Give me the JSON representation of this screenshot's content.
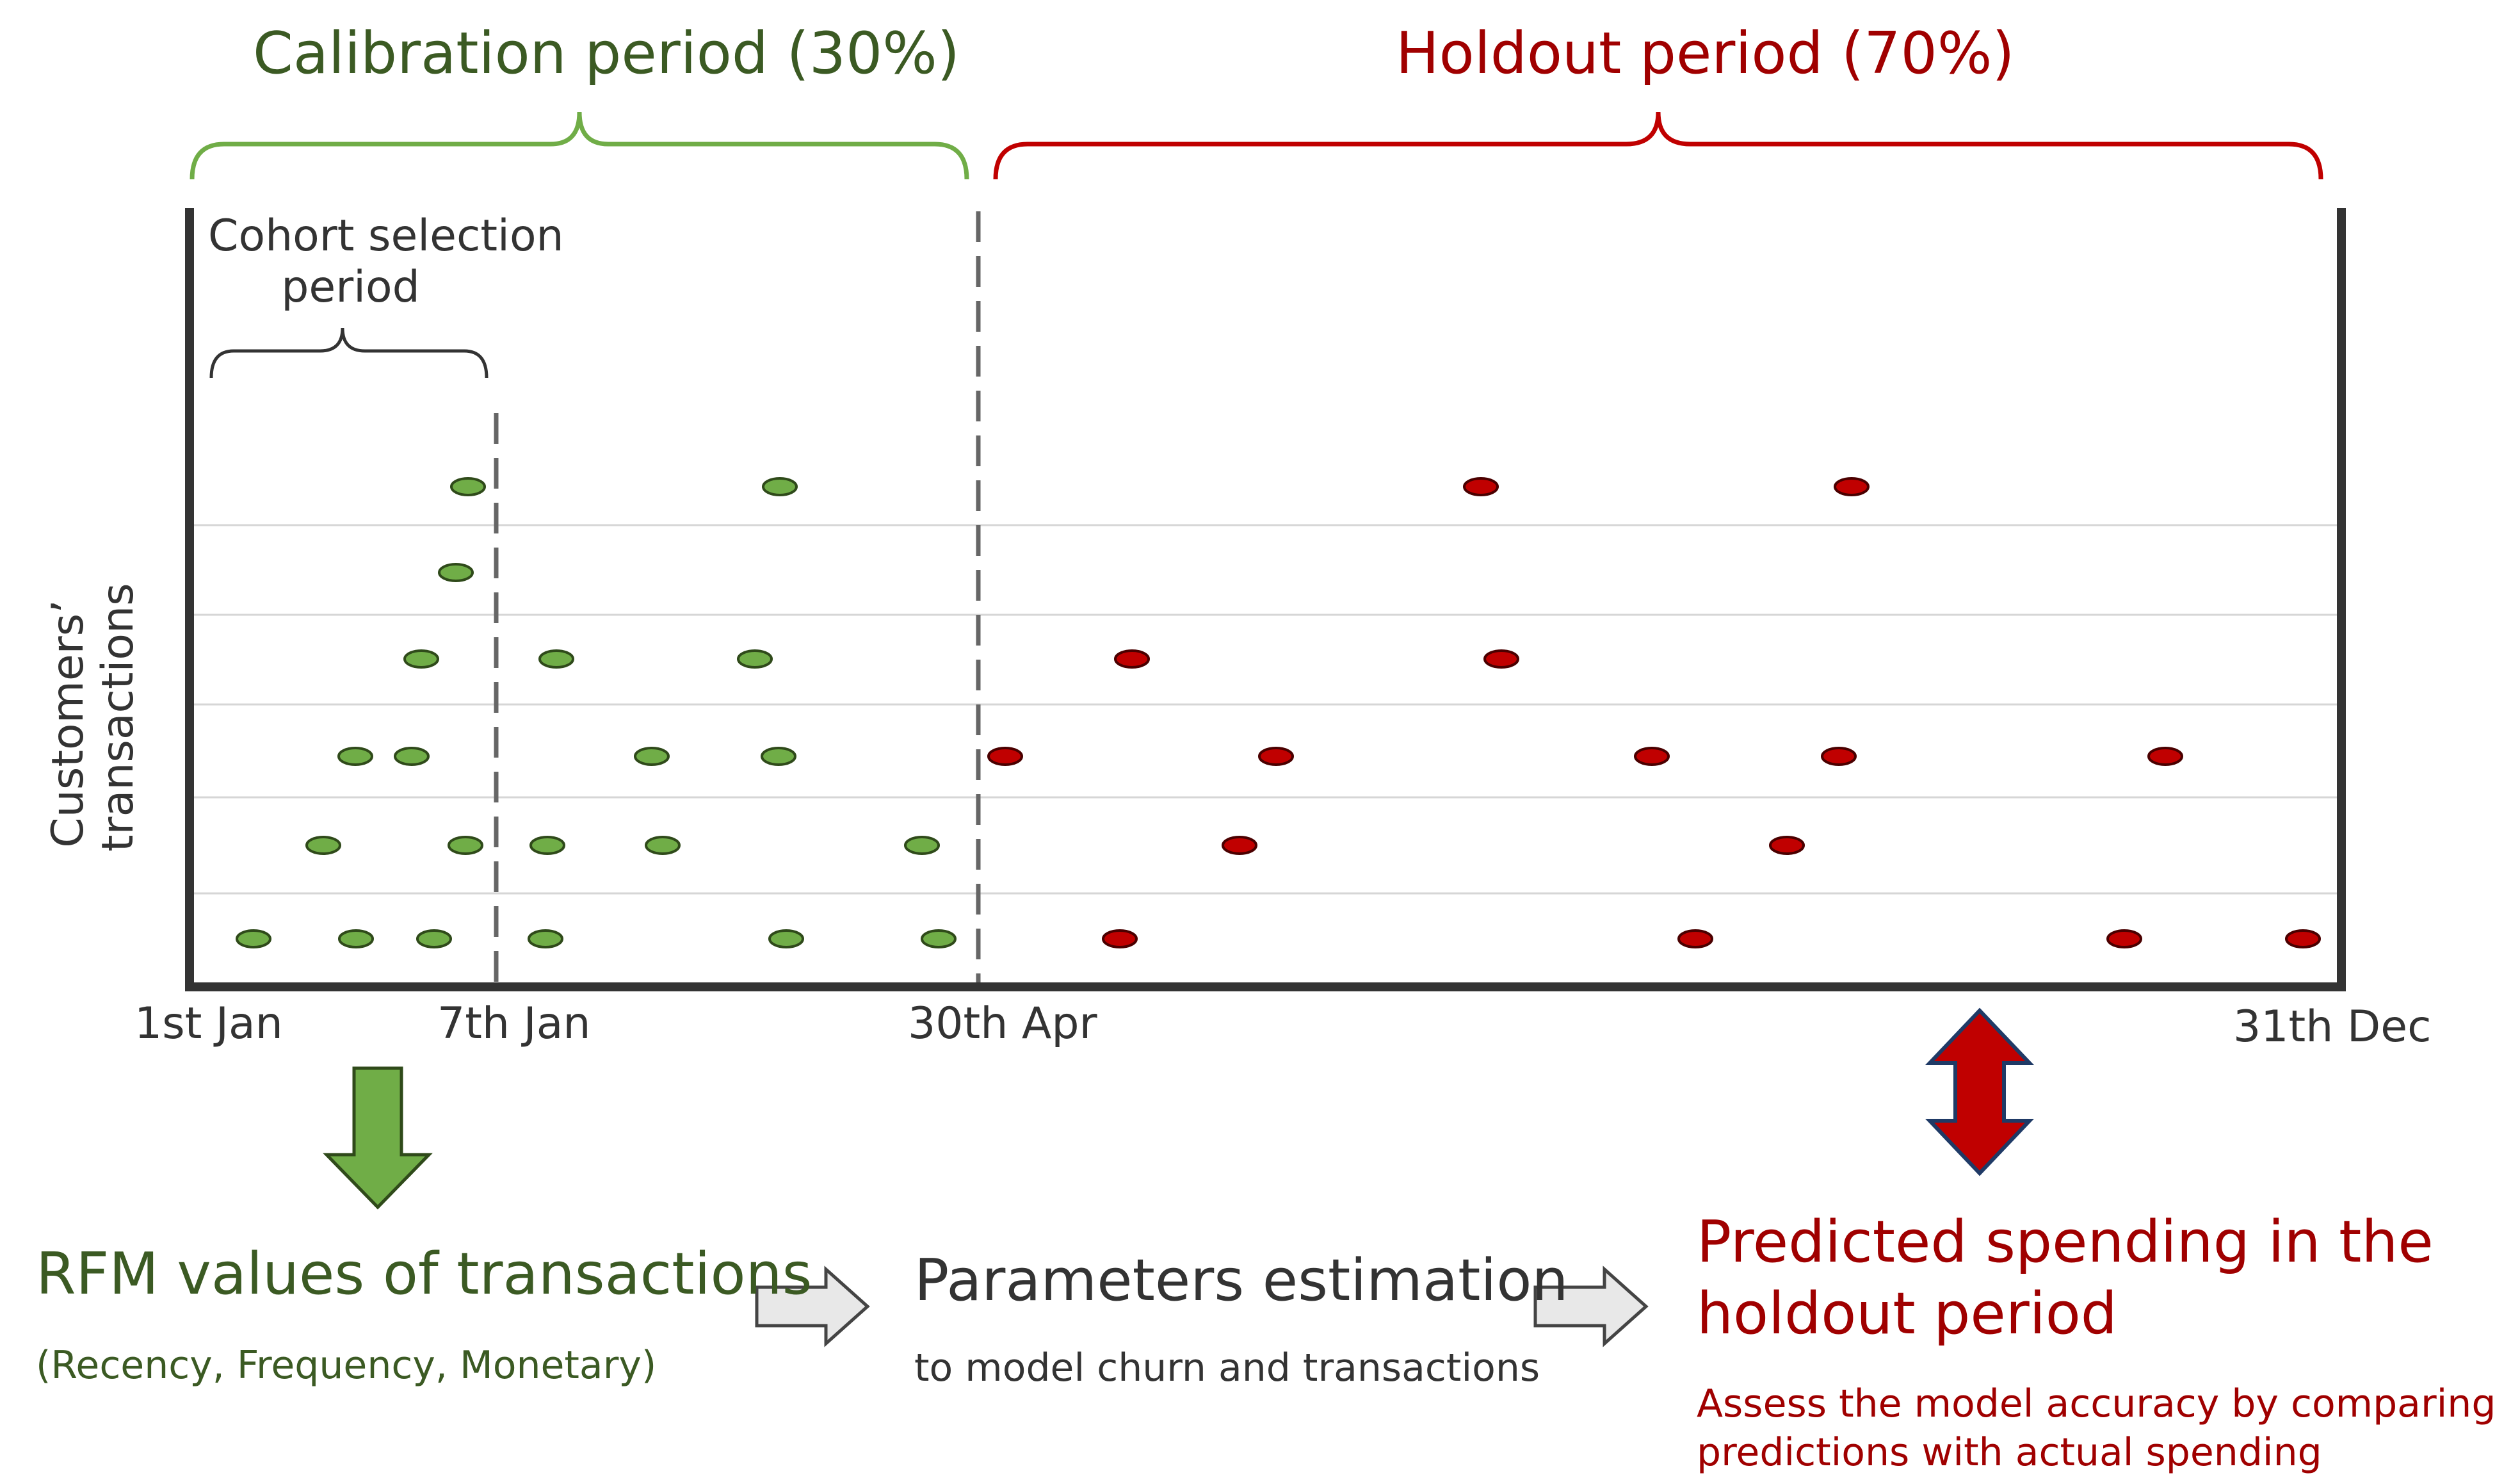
{
  "periods": {
    "calibration": "Calibration period (30%)",
    "holdout": "Holdout period (70%)",
    "cohort_line1": "Cohort selection",
    "cohort_line2": "period"
  },
  "axis": {
    "ylabel_line1": "Customers’",
    "ylabel_line2": "transactions",
    "ticks": [
      "1st Jan",
      "7th Jan",
      "30th Apr",
      "31th Dec"
    ]
  },
  "steps": {
    "rfm_title": "RFM values of transactions",
    "rfm_sub": "(Recency, Frequency, Monetary)",
    "params_title": "Parameters estimation",
    "params_sub": "to model churn and transactions",
    "pred_title_line1": "Predicted spending in the",
    "pred_title_line2": "holdout period",
    "pred_sub_line1": "Assess the model accuracy by comparing",
    "pred_sub_line2": "predictions with actual spending"
  },
  "colors": {
    "calibration": "#70ad47",
    "holdout": "#c00000",
    "calibration_text": "#3b5a23",
    "holdout_text": "#a00000"
  },
  "icons": [
    "green-down-arrow-icon",
    "red-double-arrow-icon",
    "right-arrow-icon"
  ]
}
